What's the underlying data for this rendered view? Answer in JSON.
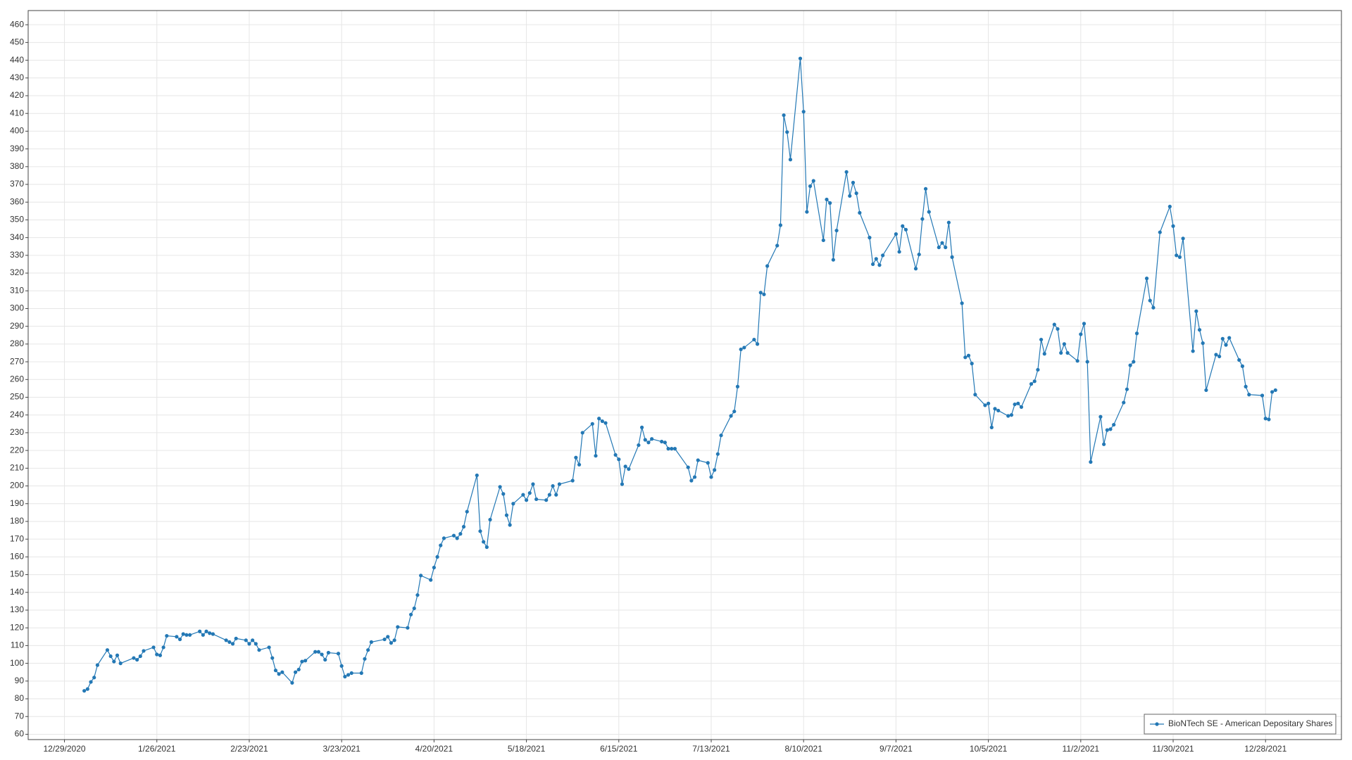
{
  "chart_data": {
    "type": "line",
    "x": [
      "1/4/2021",
      "1/5/2021",
      "1/6/2021",
      "1/7/2021",
      "1/8/2021",
      "1/11/2021",
      "1/12/2021",
      "1/13/2021",
      "1/14/2021",
      "1/15/2021",
      "1/19/2021",
      "1/20/2021",
      "1/21/2021",
      "1/22/2021",
      "1/25/2021",
      "1/26/2021",
      "1/27/2021",
      "1/28/2021",
      "1/29/2021",
      "2/1/2021",
      "2/2/2021",
      "2/3/2021",
      "2/4/2021",
      "2/5/2021",
      "2/8/2021",
      "2/9/2021",
      "2/10/2021",
      "2/11/2021",
      "2/12/2021",
      "2/16/2021",
      "2/17/2021",
      "2/18/2021",
      "2/19/2021",
      "2/22/2021",
      "2/23/2021",
      "2/24/2021",
      "2/25/2021",
      "2/26/2021",
      "3/1/2021",
      "3/2/2021",
      "3/3/2021",
      "3/4/2021",
      "3/5/2021",
      "3/8/2021",
      "3/9/2021",
      "3/10/2021",
      "3/11/2021",
      "3/12/2021",
      "3/15/2021",
      "3/16/2021",
      "3/17/2021",
      "3/18/2021",
      "3/19/2021",
      "3/22/2021",
      "3/23/2021",
      "3/24/2021",
      "3/25/2021",
      "3/26/2021",
      "3/29/2021",
      "3/30/2021",
      "3/31/2021",
      "4/1/2021",
      "4/5/2021",
      "4/6/2021",
      "4/7/2021",
      "4/8/2021",
      "4/9/2021",
      "4/12/2021",
      "4/13/2021",
      "4/14/2021",
      "4/15/2021",
      "4/16/2021",
      "4/19/2021",
      "4/20/2021",
      "4/21/2021",
      "4/22/2021",
      "4/23/2021",
      "4/26/2021",
      "4/27/2021",
      "4/28/2021",
      "4/29/2021",
      "4/30/2021",
      "5/3/2021",
      "5/4/2021",
      "5/5/2021",
      "5/6/2021",
      "5/7/2021",
      "5/10/2021",
      "5/11/2021",
      "5/12/2021",
      "5/13/2021",
      "5/14/2021",
      "5/17/2021",
      "5/18/2021",
      "5/19/2021",
      "5/20/2021",
      "5/21/2021",
      "5/24/2021",
      "5/25/2021",
      "5/26/2021",
      "5/27/2021",
      "5/28/2021",
      "6/1/2021",
      "6/2/2021",
      "6/3/2021",
      "6/4/2021",
      "6/7/2021",
      "6/8/2021",
      "6/9/2021",
      "6/10/2021",
      "6/11/2021",
      "6/14/2021",
      "6/15/2021",
      "6/16/2021",
      "6/17/2021",
      "6/18/2021",
      "6/21/2021",
      "6/22/2021",
      "6/23/2021",
      "6/24/2021",
      "6/25/2021",
      "6/28/2021",
      "6/29/2021",
      "6/30/2021",
      "7/1/2021",
      "7/2/2021",
      "7/6/2021",
      "7/7/2021",
      "7/8/2021",
      "7/9/2021",
      "7/12/2021",
      "7/13/2021",
      "7/14/2021",
      "7/15/2021",
      "7/16/2021",
      "7/19/2021",
      "7/20/2021",
      "7/21/2021",
      "7/22/2021",
      "7/23/2021",
      "7/26/2021",
      "7/27/2021",
      "7/28/2021",
      "7/29/2021",
      "7/30/2021",
      "8/2/2021",
      "8/3/2021",
      "8/4/2021",
      "8/5/2021",
      "8/6/2021",
      "8/9/2021",
      "8/10/2021",
      "8/11/2021",
      "8/12/2021",
      "8/13/2021",
      "8/16/2021",
      "8/17/2021",
      "8/18/2021",
      "8/19/2021",
      "8/20/2021",
      "8/23/2021",
      "8/24/2021",
      "8/25/2021",
      "8/26/2021",
      "8/27/2021",
      "8/30/2021",
      "8/31/2021",
      "9/1/2021",
      "9/2/2021",
      "9/3/2021",
      "9/7/2021",
      "9/8/2021",
      "9/9/2021",
      "9/10/2021",
      "9/13/2021",
      "9/14/2021",
      "9/15/2021",
      "9/16/2021",
      "9/17/2021",
      "9/20/2021",
      "9/21/2021",
      "9/22/2021",
      "9/23/2021",
      "9/24/2021",
      "9/27/2021",
      "9/28/2021",
      "9/29/2021",
      "9/30/2021",
      "10/1/2021",
      "10/4/2021",
      "10/5/2021",
      "10/6/2021",
      "10/7/2021",
      "10/8/2021",
      "10/11/2021",
      "10/12/2021",
      "10/13/2021",
      "10/14/2021",
      "10/15/2021",
      "10/18/2021",
      "10/19/2021",
      "10/20/2021",
      "10/21/2021",
      "10/22/2021",
      "10/25/2021",
      "10/26/2021",
      "10/27/2021",
      "10/28/2021",
      "10/29/2021",
      "11/1/2021",
      "11/2/2021",
      "11/3/2021",
      "11/4/2021",
      "11/5/2021",
      "11/8/2021",
      "11/9/2021",
      "11/10/2021",
      "11/11/2021",
      "11/12/2021",
      "11/15/2021",
      "11/16/2021",
      "11/17/2021",
      "11/18/2021",
      "11/19/2021",
      "11/22/2021",
      "11/23/2021",
      "11/24/2021",
      "11/26/2021",
      "11/29/2021",
      "11/30/2021",
      "12/1/2021",
      "12/2/2021",
      "12/3/2021",
      "12/6/2021",
      "12/7/2021",
      "12/8/2021",
      "12/9/2021",
      "12/10/2021",
      "12/13/2021",
      "12/14/2021",
      "12/15/2021",
      "12/16/2021",
      "12/17/2021",
      "12/20/2021",
      "12/21/2021",
      "12/22/2021",
      "12/23/2021",
      "12/27/2021",
      "12/28/2021",
      "12/29/2021",
      "12/30/2021",
      "12/31/2021"
    ],
    "series": [
      {
        "name": "BioNTech SE - American Depositary Shares",
        "color": "#2378b5",
        "values": [
          84.5,
          85.5,
          89.5,
          92,
          99,
          107.5,
          104,
          101,
          104.5,
          100,
          103,
          102,
          104,
          107,
          109,
          105,
          104.5,
          109,
          115.5,
          115,
          113.5,
          116.5,
          116,
          116,
          118,
          116,
          118,
          117,
          116.5,
          113,
          112,
          111,
          114,
          113,
          111,
          113,
          111,
          107.5,
          109,
          103,
          96,
          94,
          95,
          89,
          95,
          96.5,
          101,
          101.5,
          106.5,
          106.5,
          105,
          102,
          106,
          105.5,
          98.5,
          92.5,
          93.5,
          94.5,
          94.5,
          102.5,
          107.5,
          112,
          113.5,
          115,
          111.5,
          113,
          120.5,
          120,
          127.5,
          131,
          138.5,
          149.5,
          147,
          154,
          160,
          166.5,
          170.5,
          172,
          170.5,
          173,
          177,
          185.5,
          206,
          174.5,
          168.5,
          165.5,
          181,
          199.5,
          195.5,
          183.5,
          178,
          190,
          195,
          192,
          196,
          201,
          192.5,
          192,
          195,
          200,
          195,
          201,
          203,
          216,
          212,
          230,
          235,
          217,
          238,
          236.5,
          235.5,
          217.5,
          215,
          201,
          211,
          209.5,
          223,
          233,
          226,
          224.5,
          226.5,
          225,
          224.5,
          221,
          221,
          221,
          210.5,
          203,
          205,
          214.5,
          213,
          205,
          209,
          218,
          228.5,
          239.5,
          242,
          256,
          277,
          278,
          282.5,
          280,
          309,
          308,
          324,
          335.5,
          347,
          409,
          399.5,
          384,
          441,
          411,
          354.5,
          369,
          372,
          338.5,
          361.5,
          359.5,
          327.5,
          344,
          377,
          363.5,
          371,
          365,
          354,
          340,
          325,
          328,
          324.5,
          330,
          342,
          332,
          346.5,
          344.5,
          322.5,
          330.5,
          350.5,
          367.5,
          354.5,
          334.5,
          337,
          334.5,
          348.5,
          329,
          303,
          272.5,
          273.5,
          269,
          251.5,
          245.5,
          246.5,
          233,
          243.5,
          242.5,
          239.5,
          240,
          246,
          246.5,
          244.5,
          257.5,
          259,
          265.5,
          282.5,
          274.5,
          291,
          288.5,
          275,
          280,
          275,
          270.5,
          285.5,
          291.5,
          270,
          213.5,
          239,
          223.5,
          231.5,
          232,
          234.5,
          247,
          254.5,
          268,
          270,
          286,
          317,
          304.5,
          300.5,
          343,
          357.5,
          346.5,
          330,
          329,
          339.5,
          276,
          298.5,
          288,
          280.5,
          254,
          274,
          273,
          283,
          279.5,
          283.5,
          271,
          267.5,
          256,
          251.5,
          251,
          238,
          237.5,
          253,
          254
        ]
      }
    ],
    "xlim": [
      "12/18/2020",
      "1/20/2022"
    ],
    "xticks": [
      "12/29/2020",
      "1/26/2021",
      "2/23/2021",
      "3/23/2021",
      "4/20/2021",
      "5/18/2021",
      "6/15/2021",
      "7/13/2021",
      "8/10/2021",
      "9/7/2021",
      "10/5/2021",
      "11/2/2021",
      "11/30/2021",
      "12/28/2021"
    ],
    "ylim": [
      57,
      468
    ],
    "yticks": [
      60,
      70,
      80,
      90,
      100,
      110,
      120,
      130,
      140,
      150,
      160,
      170,
      180,
      190,
      200,
      210,
      220,
      230,
      240,
      250,
      260,
      270,
      280,
      290,
      300,
      310,
      320,
      330,
      340,
      350,
      360,
      370,
      380,
      390,
      400,
      410,
      420,
      430,
      440,
      450,
      460
    ],
    "grid": true,
    "legend": "lower right"
  }
}
